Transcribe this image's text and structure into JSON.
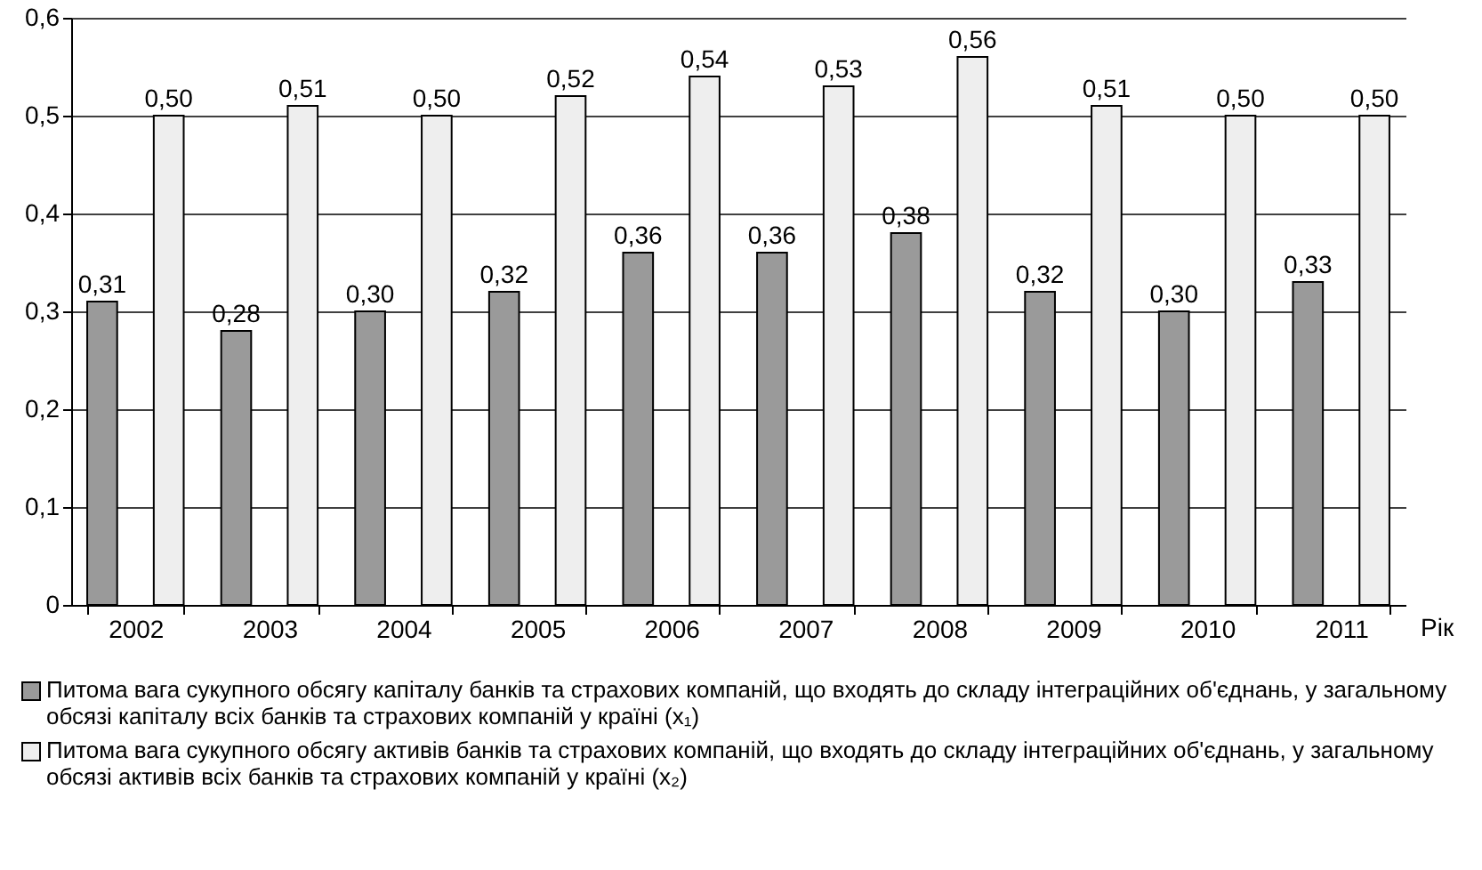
{
  "chart_data": {
    "type": "bar",
    "xlabel": "Рік",
    "categories": [
      "2002",
      "2003",
      "2004",
      "2005",
      "2006",
      "2007",
      "2008",
      "2009",
      "2010",
      "2011"
    ],
    "series": [
      {
        "name": "Питома вага сукупного обсягу капіталу банків та страхових компаній, що входять до складу інтеграційних об'єднань, у загальному обсязі капіталу всіх банків та страхових компаній у країні (x₁)",
        "color": "#9a9a9a",
        "values": [
          0.31,
          0.28,
          0.3,
          0.32,
          0.36,
          0.36,
          0.38,
          0.32,
          0.3,
          0.33
        ],
        "value_labels": [
          "0,31",
          "0,28",
          "0,30",
          "0,32",
          "0,36",
          "0,36",
          "0,38",
          "0,32",
          "0,30",
          "0,33"
        ]
      },
      {
        "name": "Питома вага сукупного обсягу активів банків та страхових компаній, що входять до складу інтеграційних об'єднань, у загальному обсязі активів всіх банків та страхових компаній у країні (x₂)",
        "color": "#eeeeee",
        "values": [
          0.5,
          0.51,
          0.5,
          0.52,
          0.54,
          0.53,
          0.56,
          0.51,
          0.5,
          0.5
        ],
        "value_labels": [
          "0,50",
          "0,51",
          "0,50",
          "0,52",
          "0,54",
          "0,53",
          "0,56",
          "0,51",
          "0,50",
          "0,50"
        ]
      }
    ],
    "ylim": [
      0,
      0.6
    ],
    "yticks": [
      0,
      {
        "value": 0.1,
        "label": "0,1"
      },
      {
        "value": 0.2,
        "label": "0,2"
      },
      {
        "value": 0.3,
        "label": "0,3"
      },
      {
        "value": 0.4,
        "label": "0,4"
      },
      {
        "value": 0.5,
        "label": "0,5"
      },
      {
        "value": 0.6,
        "label": "0,6"
      }
    ],
    "grid": "y",
    "legend": "bottom"
  }
}
